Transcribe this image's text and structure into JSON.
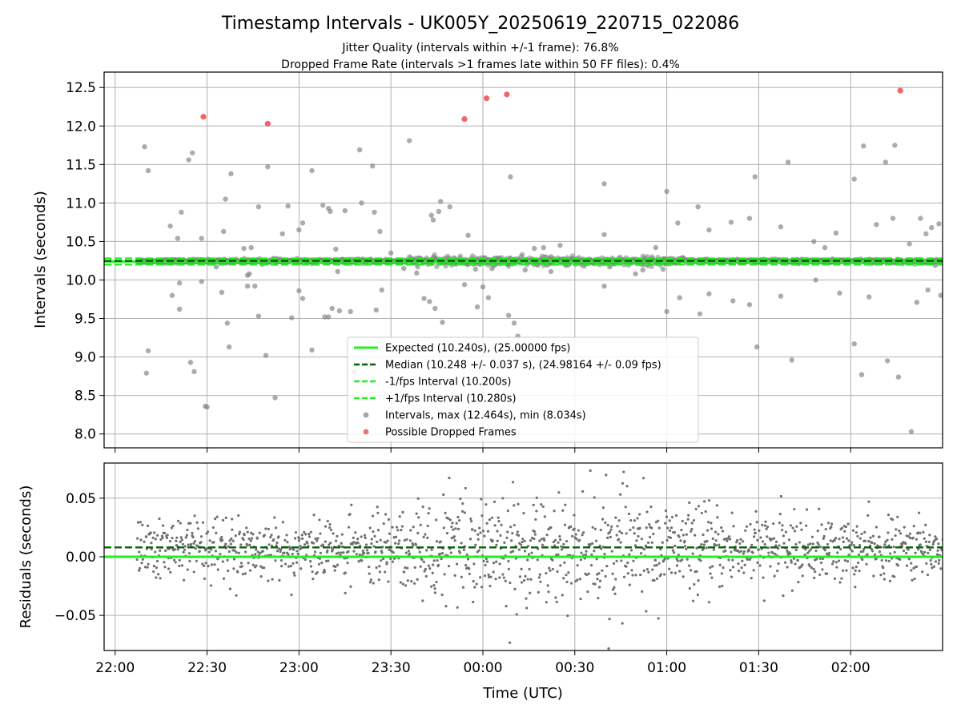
{
  "title": "Timestamp Intervals - UK005Y_20250619_220715_022086",
  "subtitle_lines": [
    "Jitter Quality (intervals within +/-1 frame): 76.8%",
    "Dropped Frame Rate (intervals >1 frames late within 50 FF files): 0.4%"
  ],
  "colors": {
    "expected": "#22ee22",
    "median": "#006400",
    "points": "#808080",
    "dropped": "#ee3333",
    "grid": "#b0b0b0"
  },
  "chart_data": [
    {
      "type": "scatter",
      "panel": "intervals",
      "ylabel": "Intervals (seconds)",
      "xlabel": "",
      "ylim": [
        7.82,
        12.7
      ],
      "xlim": [
        -0.06,
        4.5
      ],
      "yticks": [
        "8.0",
        "8.5",
        "9.0",
        "9.5",
        "10.0",
        "10.5",
        "11.0",
        "11.5",
        "12.0",
        "12.5"
      ],
      "ytick_values": [
        8.0,
        8.5,
        9.0,
        9.5,
        10.0,
        10.5,
        11.0,
        11.5,
        12.0,
        12.5
      ],
      "grid": true,
      "legend_placement": "lower-center",
      "lines": [
        {
          "name": "Expected (10.240s), (25.00000 fps)",
          "y": 10.24,
          "style": "solid",
          "color": "#22ee22"
        },
        {
          "name": "Median (10.248 +/- 0.037 s), (24.98164 +/- 0.09 fps)",
          "y": 10.248,
          "style": "dashed",
          "color": "#006400"
        },
        {
          "name": "-1/fps Interval (10.200s)",
          "y": 10.2,
          "style": "dashed",
          "color": "#22ee22"
        },
        {
          "name": "+1/fps Interval (10.280s)",
          "y": 10.28,
          "style": "dashed",
          "color": "#22ee22"
        }
      ],
      "scatter_legend": [
        {
          "name": "Intervals, max (12.464s), min (8.034s)",
          "color": "#808080"
        },
        {
          "name": "Possible Dropped Frames",
          "color": "#ee3333"
        }
      ],
      "outliers": [
        [
          0.16,
          11.73
        ],
        [
          0.17,
          8.79
        ],
        [
          0.18,
          9.08
        ],
        [
          0.18,
          11.42
        ],
        [
          0.3,
          10.7
        ],
        [
          0.31,
          9.8
        ],
        [
          0.34,
          10.54
        ],
        [
          0.35,
          9.96
        ],
        [
          0.35,
          9.62
        ],
        [
          0.36,
          10.88
        ],
        [
          0.4,
          11.56
        ],
        [
          0.42,
          11.65
        ],
        [
          0.41,
          8.93
        ],
        [
          0.43,
          8.81
        ],
        [
          0.47,
          9.98
        ],
        [
          0.47,
          10.54
        ],
        [
          0.49,
          8.36
        ],
        [
          0.5,
          8.35
        ],
        [
          0.55,
          10.17
        ],
        [
          0.58,
          9.84
        ],
        [
          0.59,
          10.63
        ],
        [
          0.6,
          11.05
        ],
        [
          0.61,
          9.44
        ],
        [
          0.62,
          9.13
        ],
        [
          0.63,
          11.38
        ],
        [
          0.7,
          10.41
        ],
        [
          0.72,
          10.06
        ],
        [
          0.72,
          9.92
        ],
        [
          0.73,
          10.08
        ],
        [
          0.74,
          10.42
        ],
        [
          0.76,
          9.92
        ],
        [
          0.78,
          10.95
        ],
        [
          0.78,
          9.53
        ],
        [
          0.82,
          9.02
        ],
        [
          0.83,
          11.47
        ],
        [
          0.86,
          10.28
        ],
        [
          0.87,
          8.47
        ],
        [
          0.91,
          10.6
        ],
        [
          0.94,
          10.96
        ],
        [
          0.96,
          9.51
        ],
        [
          1.0,
          10.65
        ],
        [
          1.0,
          9.86
        ],
        [
          1.02,
          10.74
        ],
        [
          1.02,
          9.76
        ],
        [
          1.07,
          11.42
        ],
        [
          1.07,
          9.09
        ],
        [
          1.13,
          10.97
        ],
        [
          1.14,
          9.52
        ],
        [
          1.16,
          10.93
        ],
        [
          1.16,
          9.52
        ],
        [
          1.17,
          10.89
        ],
        [
          1.18,
          9.63
        ],
        [
          1.2,
          10.4
        ],
        [
          1.21,
          10.11
        ],
        [
          1.22,
          9.6
        ],
        [
          1.25,
          10.9
        ],
        [
          1.28,
          9.59
        ],
        [
          1.3,
          8.8
        ],
        [
          1.33,
          11.69
        ],
        [
          1.34,
          11.0
        ],
        [
          1.37,
          8.92
        ],
        [
          1.4,
          11.48
        ],
        [
          1.41,
          10.88
        ],
        [
          1.42,
          9.61
        ],
        [
          1.44,
          10.63
        ],
        [
          1.45,
          9.87
        ],
        [
          1.5,
          10.35
        ],
        [
          1.57,
          10.15
        ],
        [
          1.6,
          11.81
        ],
        [
          1.62,
          10.22
        ],
        [
          1.64,
          10.09
        ],
        [
          1.68,
          9.76
        ],
        [
          1.71,
          9.72
        ],
        [
          1.72,
          10.84
        ],
        [
          1.73,
          10.78
        ],
        [
          1.74,
          9.63
        ],
        [
          1.76,
          10.89
        ],
        [
          1.77,
          11.02
        ],
        [
          1.78,
          9.45
        ],
        [
          1.82,
          10.95
        ],
        [
          1.9,
          9.94
        ],
        [
          1.92,
          10.58
        ],
        [
          1.96,
          10.14
        ],
        [
          1.97,
          9.65
        ],
        [
          2.0,
          9.91
        ],
        [
          2.0,
          10.25
        ],
        [
          2.03,
          9.77
        ],
        [
          2.05,
          10.15
        ],
        [
          2.06,
          8.95
        ],
        [
          2.14,
          9.54
        ],
        [
          2.15,
          11.34
        ],
        [
          2.17,
          9.44
        ],
        [
          2.19,
          9.27
        ],
        [
          2.23,
          10.13
        ],
        [
          2.28,
          10.41
        ],
        [
          2.33,
          10.42
        ],
        [
          2.37,
          10.11
        ],
        [
          2.42,
          10.45
        ],
        [
          2.55,
          10.18
        ],
        [
          2.64,
          10.23
        ],
        [
          2.66,
          9.92
        ],
        [
          2.66,
          10.59
        ],
        [
          2.66,
          11.25
        ],
        [
          2.83,
          10.08
        ],
        [
          2.87,
          10.13
        ],
        [
          2.94,
          10.42
        ],
        [
          2.98,
          10.14
        ],
        [
          3.0,
          11.15
        ],
        [
          3.0,
          9.59
        ],
        [
          3.06,
          10.74
        ],
        [
          3.07,
          9.77
        ],
        [
          3.17,
          10.95
        ],
        [
          3.18,
          9.56
        ],
        [
          3.23,
          10.65
        ],
        [
          3.23,
          9.82
        ],
        [
          3.35,
          10.75
        ],
        [
          3.36,
          9.73
        ],
        [
          3.45,
          10.8
        ],
        [
          3.45,
          9.68
        ],
        [
          3.48,
          11.34
        ],
        [
          3.49,
          9.13
        ],
        [
          3.62,
          10.69
        ],
        [
          3.62,
          9.79
        ],
        [
          3.66,
          11.53
        ],
        [
          3.68,
          8.96
        ],
        [
          3.8,
          10.5
        ],
        [
          3.81,
          10.0
        ],
        [
          3.86,
          10.42
        ],
        [
          3.92,
          10.61
        ],
        [
          3.94,
          9.83
        ],
        [
          4.02,
          9.17
        ],
        [
          4.02,
          11.31
        ],
        [
          4.06,
          8.77
        ],
        [
          4.07,
          11.74
        ],
        [
          4.1,
          9.78
        ],
        [
          4.14,
          10.72
        ],
        [
          4.19,
          11.53
        ],
        [
          4.2,
          8.95
        ],
        [
          4.23,
          10.8
        ],
        [
          4.24,
          11.75
        ],
        [
          4.26,
          8.74
        ],
        [
          4.32,
          10.47
        ],
        [
          4.33,
          8.03
        ],
        [
          4.36,
          9.71
        ],
        [
          4.38,
          10.8
        ],
        [
          4.41,
          10.6
        ],
        [
          4.42,
          9.87
        ],
        [
          4.44,
          10.68
        ],
        [
          4.48,
          10.73
        ],
        [
          4.49,
          9.8
        ],
        [
          4.46,
          10.19
        ]
      ],
      "dropped_frames": [
        [
          0.48,
          12.12
        ],
        [
          0.83,
          12.03
        ],
        [
          1.9,
          12.09
        ],
        [
          2.02,
          12.36
        ],
        [
          2.13,
          12.41
        ],
        [
          4.27,
          12.46
        ]
      ]
    },
    {
      "type": "scatter",
      "panel": "residuals",
      "ylabel": "Residuals (seconds)",
      "xlabel": "Time (UTC)",
      "ylim": [
        -0.08,
        0.08
      ],
      "xlim": [
        -0.06,
        4.5
      ],
      "yticks": [
        "−0.05",
        "0.00",
        "0.05"
      ],
      "ytick_values": [
        -0.05,
        0.0,
        0.05
      ],
      "xticks": [
        "22:00",
        "22:30",
        "23:00",
        "23:30",
        "00:00",
        "00:30",
        "01:00",
        "01:30",
        "02:00"
      ],
      "xtick_values": [
        0,
        0.5,
        1.0,
        1.5,
        2.0,
        2.5,
        3.0,
        3.5,
        4.0
      ],
      "grid": true,
      "lines": [
        {
          "name": "expected",
          "y": 0.0,
          "style": "solid",
          "color": "#22ee22"
        },
        {
          "name": "median",
          "y": 0.008,
          "style": "dashed",
          "color": "#006400"
        }
      ],
      "scatter_x_range": [
        0.12,
        4.5
      ],
      "point_count": 1500,
      "envelope": [
        [
          0.1,
          0.02
        ],
        [
          0.5,
          0.025
        ],
        [
          1.0,
          0.022
        ],
        [
          1.5,
          0.028
        ],
        [
          1.75,
          0.04
        ],
        [
          2.1,
          0.045
        ],
        [
          2.4,
          0.04
        ],
        [
          2.75,
          0.045
        ],
        [
          3.0,
          0.035
        ],
        [
          3.5,
          0.028
        ],
        [
          4.0,
          0.024
        ],
        [
          4.5,
          0.022
        ]
      ],
      "residual_offset": 0.006
    }
  ]
}
